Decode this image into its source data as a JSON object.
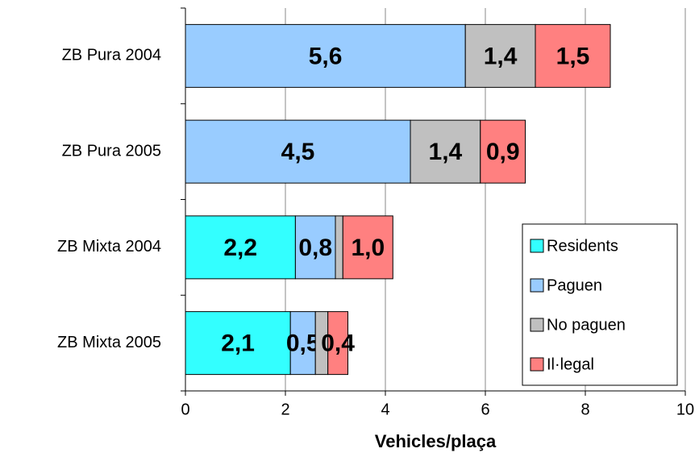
{
  "chart_data": {
    "type": "stacked-barh",
    "categories": [
      "ZB Pura 2004",
      "ZB Pura 2005",
      "ZB Mixta 2004",
      "ZB Mixta 2005"
    ],
    "series": [
      {
        "name": "Residents",
        "color": "#33ffff",
        "values": [
          0,
          0,
          2.2,
          2.1
        ],
        "value_labels": [
          null,
          null,
          "2,2",
          "2,1"
        ]
      },
      {
        "name": "Paguen",
        "color": "#99ccff",
        "values": [
          5.6,
          4.5,
          0.8,
          0.5
        ],
        "value_labels": [
          "5,6",
          "4,5",
          "0,8",
          "0,5"
        ]
      },
      {
        "name": "No paguen",
        "color": "#c0c0c0",
        "values": [
          1.4,
          1.4,
          0.15,
          0.25
        ],
        "value_labels": [
          "1,4",
          "1,4",
          null,
          null
        ]
      },
      {
        "name": "Il·legal",
        "color": "#ff8080",
        "values": [
          1.5,
          0.9,
          1.0,
          0.4
        ],
        "value_labels": [
          "1,5",
          "0,9",
          "1,0",
          "0,4"
        ]
      }
    ],
    "xlabel": "Vehicles/plaça",
    "xlim": [
      0,
      10
    ],
    "xticks": [
      0,
      2,
      4,
      6,
      8,
      10
    ],
    "grid": true,
    "legend": "lower right"
  }
}
